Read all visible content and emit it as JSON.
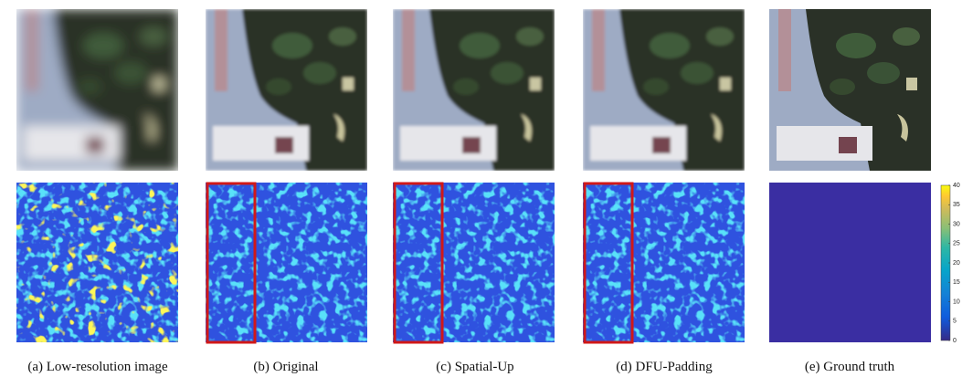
{
  "captions": [
    "(a) Low-resolution image",
    "(b) Original",
    "(c) Spatial-Up",
    "(d) DFU-Padding",
    "(e) Ground truth"
  ],
  "colorbar": {
    "range": [
      0,
      40
    ],
    "ticks": [
      0,
      5,
      10,
      15,
      20,
      25,
      30,
      35,
      40
    ]
  }
}
